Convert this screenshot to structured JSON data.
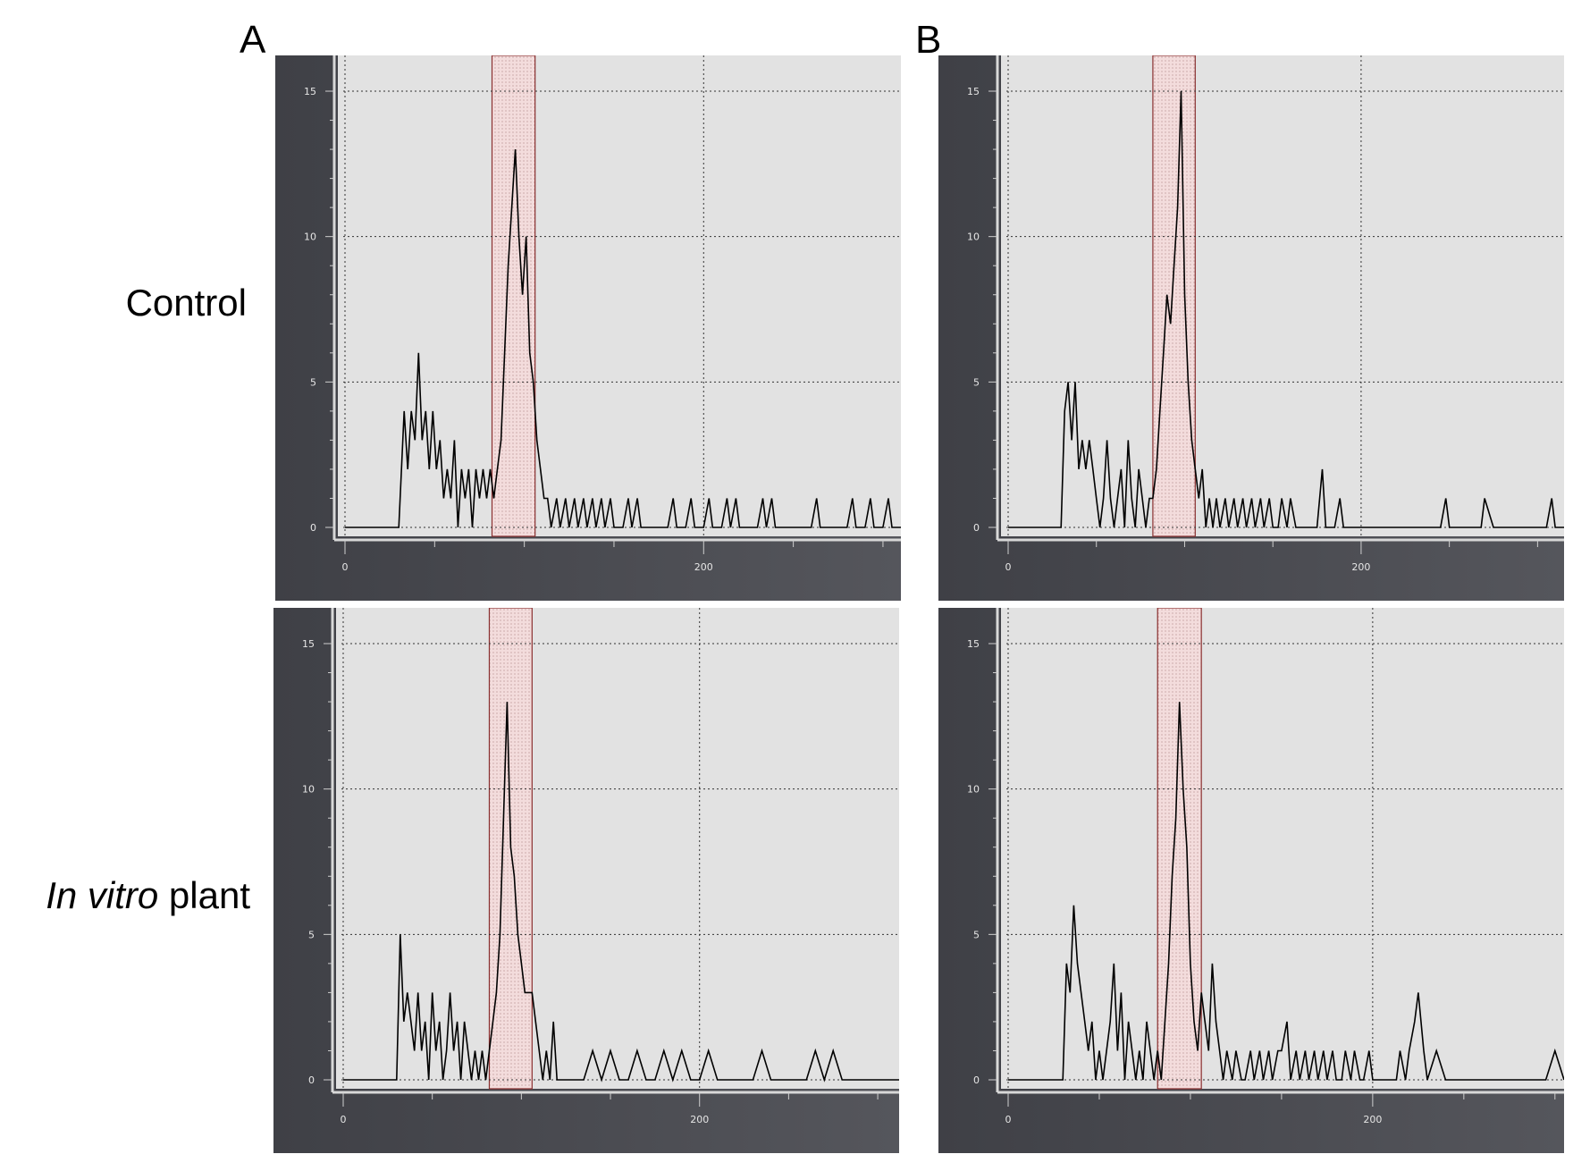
{
  "column_labels": [
    "A",
    "B"
  ],
  "row_labels": [
    {
      "italic": "",
      "plain": "Control"
    },
    {
      "italic": "In vitro",
      "plain": " plant"
    }
  ],
  "colors": {
    "frame": "#55565c",
    "plot_bg": "#e2e2e2",
    "trace": "#000000",
    "gate_fill": "#f3dcdc",
    "gate_border": "#8a3030",
    "tick_text": "#e6e6e6"
  },
  "chart_data": [
    {
      "id": "A-control",
      "type": "line",
      "xlim": [
        0,
        310
      ],
      "ylim": [
        0,
        15
      ],
      "x_ticks": [
        0,
        200
      ],
      "y_ticks": [
        0,
        5,
        10,
        15
      ],
      "grid": true,
      "gate_x": [
        82,
        106
      ],
      "x": [
        0,
        30,
        33,
        35,
        37,
        39,
        41,
        43,
        45,
        47,
        49,
        51,
        53,
        55,
        57,
        59,
        61,
        63,
        65,
        67,
        69,
        71,
        73,
        75,
        77,
        79,
        81,
        83,
        85,
        87,
        89,
        91,
        93,
        95,
        97,
        99,
        101,
        103,
        105,
        107,
        109,
        111,
        113,
        115,
        118,
        120,
        123,
        125,
        128,
        130,
        133,
        135,
        138,
        140,
        143,
        145,
        148,
        150,
        153,
        155,
        158,
        160,
        163,
        165,
        168,
        170,
        173,
        175,
        178,
        180,
        183,
        185,
        188,
        190,
        193,
        195,
        198,
        200,
        203,
        205,
        208,
        210,
        213,
        215,
        218,
        220,
        223,
        225,
        228,
        230,
        233,
        235,
        238,
        240,
        243,
        245,
        248,
        250,
        253,
        255,
        258,
        260,
        263,
        265,
        268,
        270,
        273,
        275,
        278,
        280,
        283,
        285,
        288,
        290,
        293,
        295,
        298,
        300,
        303,
        305,
        310
      ],
      "y": [
        0,
        0,
        4,
        2,
        4,
        3,
        6,
        3,
        4,
        2,
        4,
        2,
        3,
        1,
        2,
        1,
        3,
        0,
        2,
        1,
        2,
        0,
        2,
        1,
        2,
        1,
        2,
        1,
        2,
        3,
        6,
        9,
        11,
        13,
        10,
        8,
        10,
        6,
        5,
        3,
        2,
        1,
        1,
        0,
        1,
        0,
        1,
        0,
        1,
        0,
        1,
        0,
        1,
        0,
        1,
        0,
        1,
        0,
        0,
        0,
        1,
        0,
        1,
        0,
        0,
        0,
        0,
        0,
        0,
        0,
        1,
        0,
        0,
        0,
        1,
        0,
        0,
        0,
        1,
        0,
        0,
        0,
        1,
        0,
        1,
        0,
        0,
        0,
        0,
        0,
        1,
        0,
        1,
        0,
        0,
        0,
        0,
        0,
        0,
        0,
        0,
        0,
        1,
        0,
        0,
        0,
        0,
        0,
        0,
        0,
        1,
        0,
        0,
        0,
        1,
        0,
        0,
        0,
        1,
        0,
        0
      ]
    },
    {
      "id": "B-control",
      "type": "line",
      "xlim": [
        0,
        315
      ],
      "ylim": [
        0,
        15
      ],
      "x_ticks": [
        0,
        200
      ],
      "y_ticks": [
        0,
        5,
        10,
        15
      ],
      "grid": true,
      "gate_x": [
        82,
        106
      ],
      "x": [
        0,
        30,
        32,
        34,
        36,
        38,
        40,
        42,
        44,
        46,
        48,
        50,
        52,
        54,
        56,
        58,
        60,
        62,
        64,
        66,
        68,
        70,
        72,
        74,
        76,
        78,
        80,
        82,
        84,
        86,
        88,
        90,
        92,
        94,
        96,
        98,
        100,
        102,
        104,
        106,
        108,
        110,
        112,
        114,
        116,
        118,
        120,
        123,
        125,
        128,
        130,
        133,
        135,
        138,
        140,
        143,
        145,
        148,
        150,
        153,
        155,
        158,
        160,
        163,
        165,
        168,
        170,
        173,
        175,
        178,
        180,
        183,
        185,
        188,
        190,
        193,
        195,
        198,
        200,
        205,
        210,
        215,
        220,
        225,
        230,
        235,
        240,
        245,
        248,
        250,
        255,
        260,
        265,
        268,
        270,
        275,
        280,
        285,
        290,
        295,
        300,
        305,
        308,
        310,
        315
      ],
      "y": [
        0,
        0,
        4,
        5,
        3,
        5,
        2,
        3,
        2,
        3,
        2,
        1,
        0,
        1,
        3,
        1,
        0,
        1,
        2,
        0,
        3,
        1,
        0,
        2,
        1,
        0,
        1,
        1,
        2,
        4,
        6,
        8,
        7,
        9,
        11,
        15,
        8,
        5,
        3,
        2,
        1,
        2,
        0,
        1,
        0,
        1,
        0,
        1,
        0,
        1,
        0,
        1,
        0,
        1,
        0,
        1,
        0,
        1,
        0,
        0,
        1,
        0,
        1,
        0,
        0,
        0,
        0,
        0,
        0,
        2,
        0,
        0,
        0,
        1,
        0,
        0,
        0,
        0,
        0,
        0,
        0,
        0,
        0,
        0,
        0,
        0,
        0,
        0,
        1,
        0,
        0,
        0,
        0,
        0,
        1,
        0,
        0,
        0,
        0,
        0,
        0,
        0,
        1,
        0,
        0
      ]
    },
    {
      "id": "A-invitro",
      "type": "line",
      "xlim": [
        0,
        312
      ],
      "ylim": [
        0,
        15
      ],
      "x_ticks": [
        0,
        200
      ],
      "y_ticks": [
        0,
        5,
        10,
        15
      ],
      "grid": true,
      "gate_x": [
        82,
        106
      ],
      "x": [
        0,
        30,
        32,
        34,
        36,
        38,
        40,
        42,
        44,
        46,
        48,
        50,
        52,
        54,
        56,
        58,
        60,
        62,
        64,
        66,
        68,
        70,
        72,
        74,
        76,
        78,
        80,
        82,
        84,
        86,
        88,
        90,
        92,
        94,
        96,
        98,
        100,
        102,
        104,
        106,
        108,
        110,
        112,
        114,
        116,
        118,
        120,
        125,
        130,
        135,
        140,
        145,
        150,
        155,
        160,
        165,
        170,
        175,
        180,
        185,
        190,
        195,
        200,
        205,
        210,
        215,
        220,
        225,
        230,
        235,
        240,
        245,
        250,
        255,
        260,
        265,
        270,
        275,
        280,
        285,
        290,
        295,
        300,
        305,
        312
      ],
      "y": [
        0,
        0,
        5,
        2,
        3,
        2,
        1,
        3,
        1,
        2,
        0,
        3,
        1,
        2,
        0,
        1,
        3,
        1,
        2,
        0,
        2,
        1,
        0,
        1,
        0,
        1,
        0,
        1,
        2,
        3,
        5,
        9,
        13,
        8,
        7,
        5,
        4,
        3,
        3,
        3,
        2,
        1,
        0,
        1,
        0,
        2,
        0,
        0,
        0,
        0,
        1,
        0,
        1,
        0,
        0,
        1,
        0,
        0,
        1,
        0,
        1,
        0,
        0,
        1,
        0,
        0,
        0,
        0,
        0,
        1,
        0,
        0,
        0,
        0,
        0,
        1,
        0,
        1,
        0,
        0,
        0,
        0,
        0,
        0,
        0
      ]
    },
    {
      "id": "B-invitro",
      "type": "line",
      "xlim": [
        0,
        305
      ],
      "ylim": [
        0,
        15
      ],
      "x_ticks": [
        0,
        200
      ],
      "y_ticks": [
        0,
        5,
        10,
        15
      ],
      "grid": true,
      "gate_x": [
        82,
        106
      ],
      "x": [
        0,
        30,
        32,
        34,
        36,
        38,
        40,
        42,
        44,
        46,
        48,
        50,
        52,
        54,
        56,
        58,
        60,
        62,
        64,
        66,
        68,
        70,
        72,
        74,
        76,
        78,
        80,
        82,
        84,
        86,
        88,
        90,
        92,
        94,
        96,
        98,
        100,
        102,
        104,
        106,
        108,
        110,
        112,
        114,
        116,
        118,
        120,
        123,
        125,
        128,
        130,
        133,
        135,
        138,
        140,
        143,
        145,
        148,
        150,
        153,
        155,
        158,
        160,
        163,
        165,
        168,
        170,
        173,
        175,
        178,
        180,
        183,
        185,
        188,
        190,
        193,
        195,
        198,
        200,
        205,
        210,
        213,
        215,
        218,
        220,
        223,
        225,
        228,
        230,
        235,
        240,
        245,
        250,
        255,
        260,
        265,
        270,
        275,
        280,
        285,
        290,
        295,
        300,
        305
      ],
      "y": [
        0,
        0,
        4,
        3,
        6,
        4,
        3,
        2,
        1,
        2,
        0,
        1,
        0,
        1,
        2,
        4,
        1,
        3,
        0,
        2,
        1,
        0,
        1,
        0,
        2,
        1,
        0,
        1,
        0,
        2,
        4,
        7,
        9,
        13,
        10,
        8,
        4,
        2,
        1,
        3,
        2,
        1,
        4,
        2,
        1,
        0,
        1,
        0,
        1,
        0,
        0,
        1,
        0,
        1,
        0,
        1,
        0,
        1,
        1,
        2,
        0,
        1,
        0,
        1,
        0,
        1,
        0,
        1,
        0,
        1,
        0,
        0,
        1,
        0,
        1,
        0,
        0,
        1,
        0,
        0,
        0,
        0,
        1,
        0,
        1,
        2,
        3,
        1,
        0,
        1,
        0,
        0,
        0,
        0,
        0,
        0,
        0,
        0,
        0,
        0,
        0,
        0,
        1,
        0
      ]
    }
  ]
}
